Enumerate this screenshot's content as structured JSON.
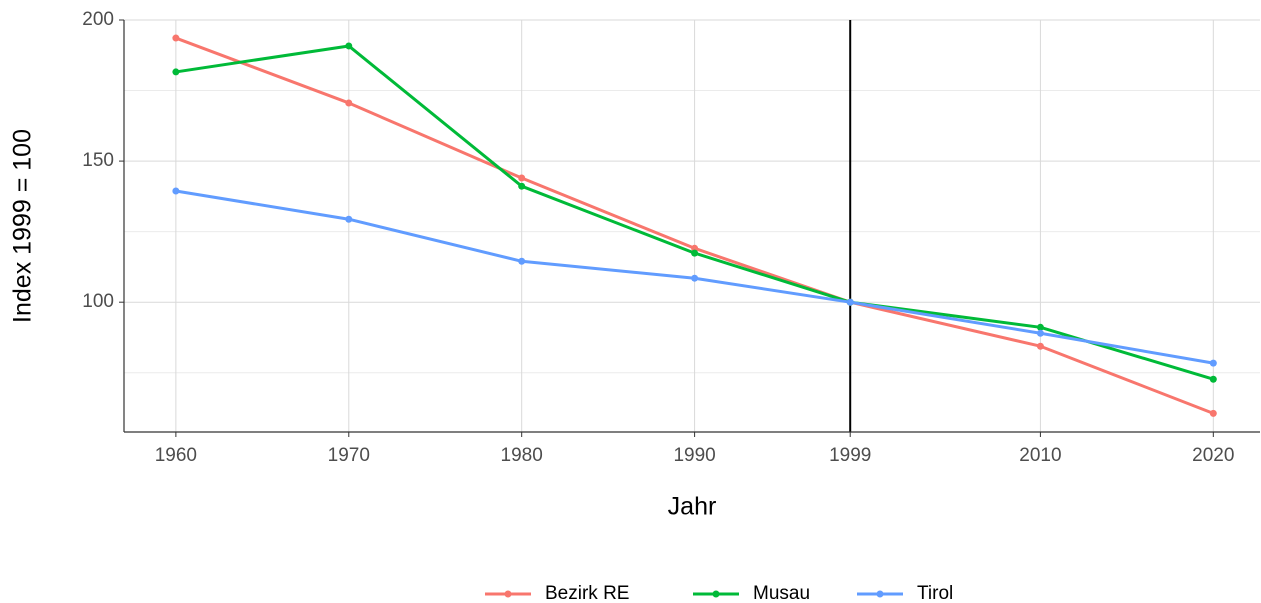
{
  "chart_data": {
    "type": "line",
    "x_label": "Jahr",
    "y_label": "Index 1999 = 100",
    "x": [
      1960,
      1970,
      1980,
      1990,
      1999,
      2010,
      2020
    ],
    "series": [
      {
        "name": "Bezirk RE",
        "color": "#F8766D",
        "values": [
          193.6,
          170.6,
          144,
          119.1,
          100,
          84.4,
          60.6
        ]
      },
      {
        "name": "Musau",
        "color": "#00BA38",
        "values": [
          181.6,
          190.8,
          141.1,
          117.4,
          100,
          91.1,
          72.7
        ]
      },
      {
        "name": "Tirol",
        "color": "#619CFF",
        "values": [
          139.4,
          129.4,
          114.5,
          108.5,
          100,
          89,
          78.4
        ]
      }
    ],
    "xlim": [
      1957,
      2022.7
    ],
    "xticks": [
      1960,
      1970,
      1980,
      1990,
      1999,
      2010,
      2020
    ],
    "ylim": [
      54,
      200
    ],
    "yticks": [
      100,
      150,
      200
    ],
    "yminor_ticks": [
      75,
      125,
      175
    ],
    "grid": true,
    "vline": 1999,
    "legend_position": "bottom"
  }
}
